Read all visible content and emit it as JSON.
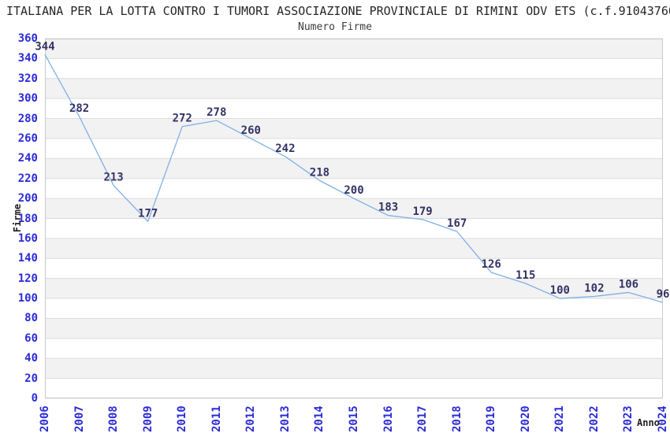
{
  "title": "ITALIANA PER LA LOTTA CONTRO I TUMORI ASSOCIAZIONE PROVINCIALE DI RIMINI ODV ETS (c.f.91043760",
  "chart_data": {
    "type": "line",
    "title": "Numero Firme",
    "xlabel": "Anno",
    "ylabel": "Firme",
    "categories": [
      "2006",
      "2007",
      "2008",
      "2009",
      "2010",
      "2011",
      "2012",
      "2013",
      "2014",
      "2015",
      "2016",
      "2017",
      "2018",
      "2019",
      "2020",
      "2021",
      "2022",
      "2023",
      "2024"
    ],
    "values": [
      344,
      282,
      213,
      177,
      272,
      278,
      260,
      242,
      218,
      200,
      183,
      179,
      167,
      126,
      115,
      100,
      102,
      106,
      96
    ],
    "ylim": [
      0,
      360
    ],
    "ytick_step": 20,
    "grid": true,
    "banded_background": true,
    "legend_position": "none",
    "colors": {
      "line": "#7fafe6",
      "data_label": "#333366",
      "tick_label": "#2b2bd5",
      "band_gray": "#f2f2f2",
      "band_white": "#ffffff",
      "gridline": "#dcdcdc",
      "plot_border": "#c9c9c9",
      "title_text": "#262626",
      "axis_title_text": "#1f1f1f"
    }
  }
}
